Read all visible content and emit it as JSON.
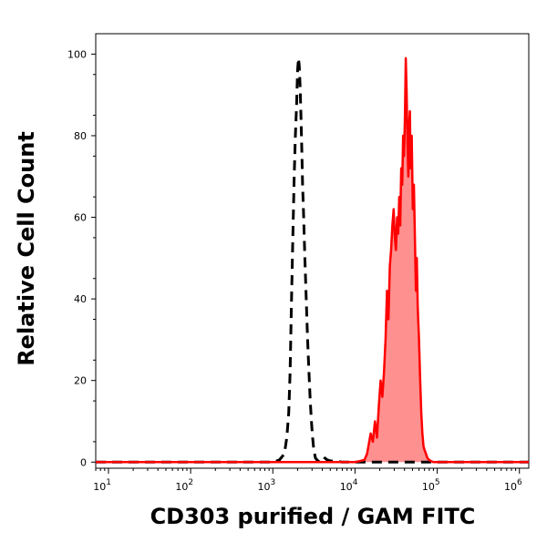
{
  "chart_data": {
    "type": "area",
    "xlabel": "CD303 purified / GAM FITC",
    "ylabel": "Relative Cell Count",
    "xscale": "log",
    "xlim": [
      7,
      1300000
    ],
    "ylim": [
      -1.5,
      105
    ],
    "grid": false,
    "legend": "none",
    "x_ticks": [
      {
        "value": 10,
        "base": "10",
        "exp": "1"
      },
      {
        "value": 100,
        "base": "10",
        "exp": "2"
      },
      {
        "value": 1000,
        "base": "10",
        "exp": "3"
      },
      {
        "value": 10000,
        "base": "10",
        "exp": "4"
      },
      {
        "value": 100000,
        "base": "10",
        "exp": "5"
      },
      {
        "value": 1000000,
        "base": "10",
        "exp": "6"
      }
    ],
    "y_ticks": [
      "0",
      "20",
      "40",
      "60",
      "80",
      "100"
    ],
    "series": [
      {
        "style": "dashed",
        "color": "#000000",
        "fill": "none",
        "x": [
          7,
          1000,
          1200,
          1380,
          1480,
          1560,
          1620,
          1680,
          1750,
          1820,
          1880,
          1950,
          2000,
          2050,
          2100,
          2150,
          2200,
          2250,
          2300,
          2370,
          2450,
          2550,
          2650,
          2750,
          2850,
          2950,
          3050,
          3150,
          3300,
          3450,
          3700,
          4000,
          4300,
          4600,
          5000,
          5500,
          6200,
          7000,
          1300000
        ],
        "y": [
          0,
          0,
          0.5,
          2,
          6,
          12,
          22,
          38,
          55,
          70,
          80,
          88,
          96,
          99,
          97,
          92,
          85,
          77,
          68,
          60,
          50,
          40,
          30,
          22,
          15,
          10,
          6,
          3,
          1,
          0.5,
          0,
          0,
          1,
          0.5,
          0.3,
          0.2,
          0.1,
          0,
          0
        ]
      },
      {
        "style": "solid",
        "color": "#ff0000",
        "fill": "#ff9090",
        "x": [
          7,
          10000,
          13000,
          14000,
          15500,
          16500,
          17500,
          18500,
          19500,
          20500,
          21500,
          22500,
          23500,
          24500,
          25500,
          26500,
          27500,
          28500,
          29500,
          30500,
          31500,
          32500,
          33500,
          34500,
          35500,
          36500,
          37500,
          38500,
          39500,
          40500,
          41500,
          42500,
          43500,
          44500,
          45500,
          46500,
          47500,
          49000,
          50500,
          52000,
          53500,
          55000,
          56500,
          58000,
          60000,
          62000,
          64000,
          66000,
          68000,
          70000,
          73000,
          76000,
          80000,
          85000,
          90000,
          1300000
        ],
        "y": [
          0,
          0,
          0.5,
          2,
          7,
          5,
          10,
          6,
          14,
          20,
          16,
          22,
          30,
          42,
          35,
          48,
          52,
          58,
          62,
          55,
          52,
          60,
          56,
          65,
          58,
          72,
          68,
          80,
          75,
          85,
          99,
          90,
          78,
          70,
          82,
          86,
          72,
          80,
          62,
          68,
          55,
          42,
          50,
          38,
          30,
          20,
          12,
          7,
          4,
          3,
          2,
          1,
          0.5,
          0.2,
          0,
          0
        ]
      }
    ]
  }
}
